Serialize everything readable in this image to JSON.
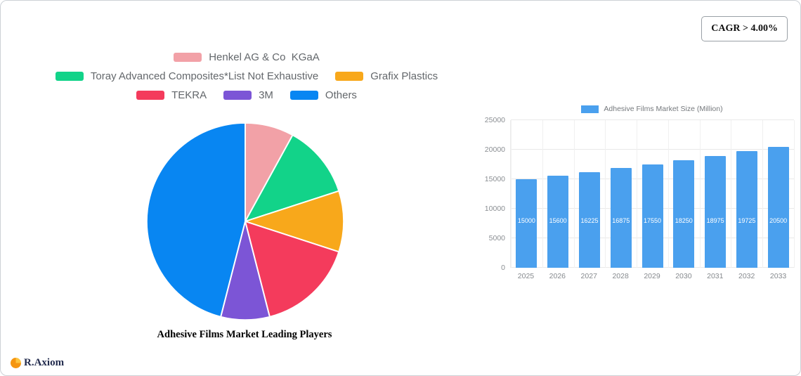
{
  "badge": {
    "text": "CAGR > 4.00%"
  },
  "brand": {
    "name": "R.Axiom"
  },
  "chart_data": [
    {
      "type": "pie",
      "title": "Adhesive Films Market Leading Players",
      "labels": [
        "Henkel AG & Co  KGaA",
        "Toray Advanced Composites*List Not Exhaustive",
        "Grafix Plastics",
        "TEKRA",
        "3M",
        "Others"
      ],
      "values": [
        8,
        12,
        10,
        16,
        8,
        46
      ],
      "colors": [
        "#f2a1a7",
        "#12d389",
        "#f8a81b",
        "#f43b5c",
        "#7c55d6",
        "#0886f2"
      ],
      "legend_position": "top",
      "start_angle_deg": -90
    },
    {
      "type": "bar",
      "legend": "Adhesive Films Market Size (Million)",
      "categories": [
        "2025",
        "2026",
        "2027",
        "2028",
        "2029",
        "2030",
        "2031",
        "2032",
        "2033"
      ],
      "values": [
        15000,
        15600,
        16225,
        16875,
        17550,
        18250,
        18975,
        19725,
        20500
      ],
      "ylim": [
        0,
        25000
      ],
      "yticks": [
        0,
        5000,
        10000,
        15000,
        20000,
        25000
      ],
      "bar_color": "#4aa0ee",
      "grid": true,
      "legend_position": "top"
    }
  ]
}
